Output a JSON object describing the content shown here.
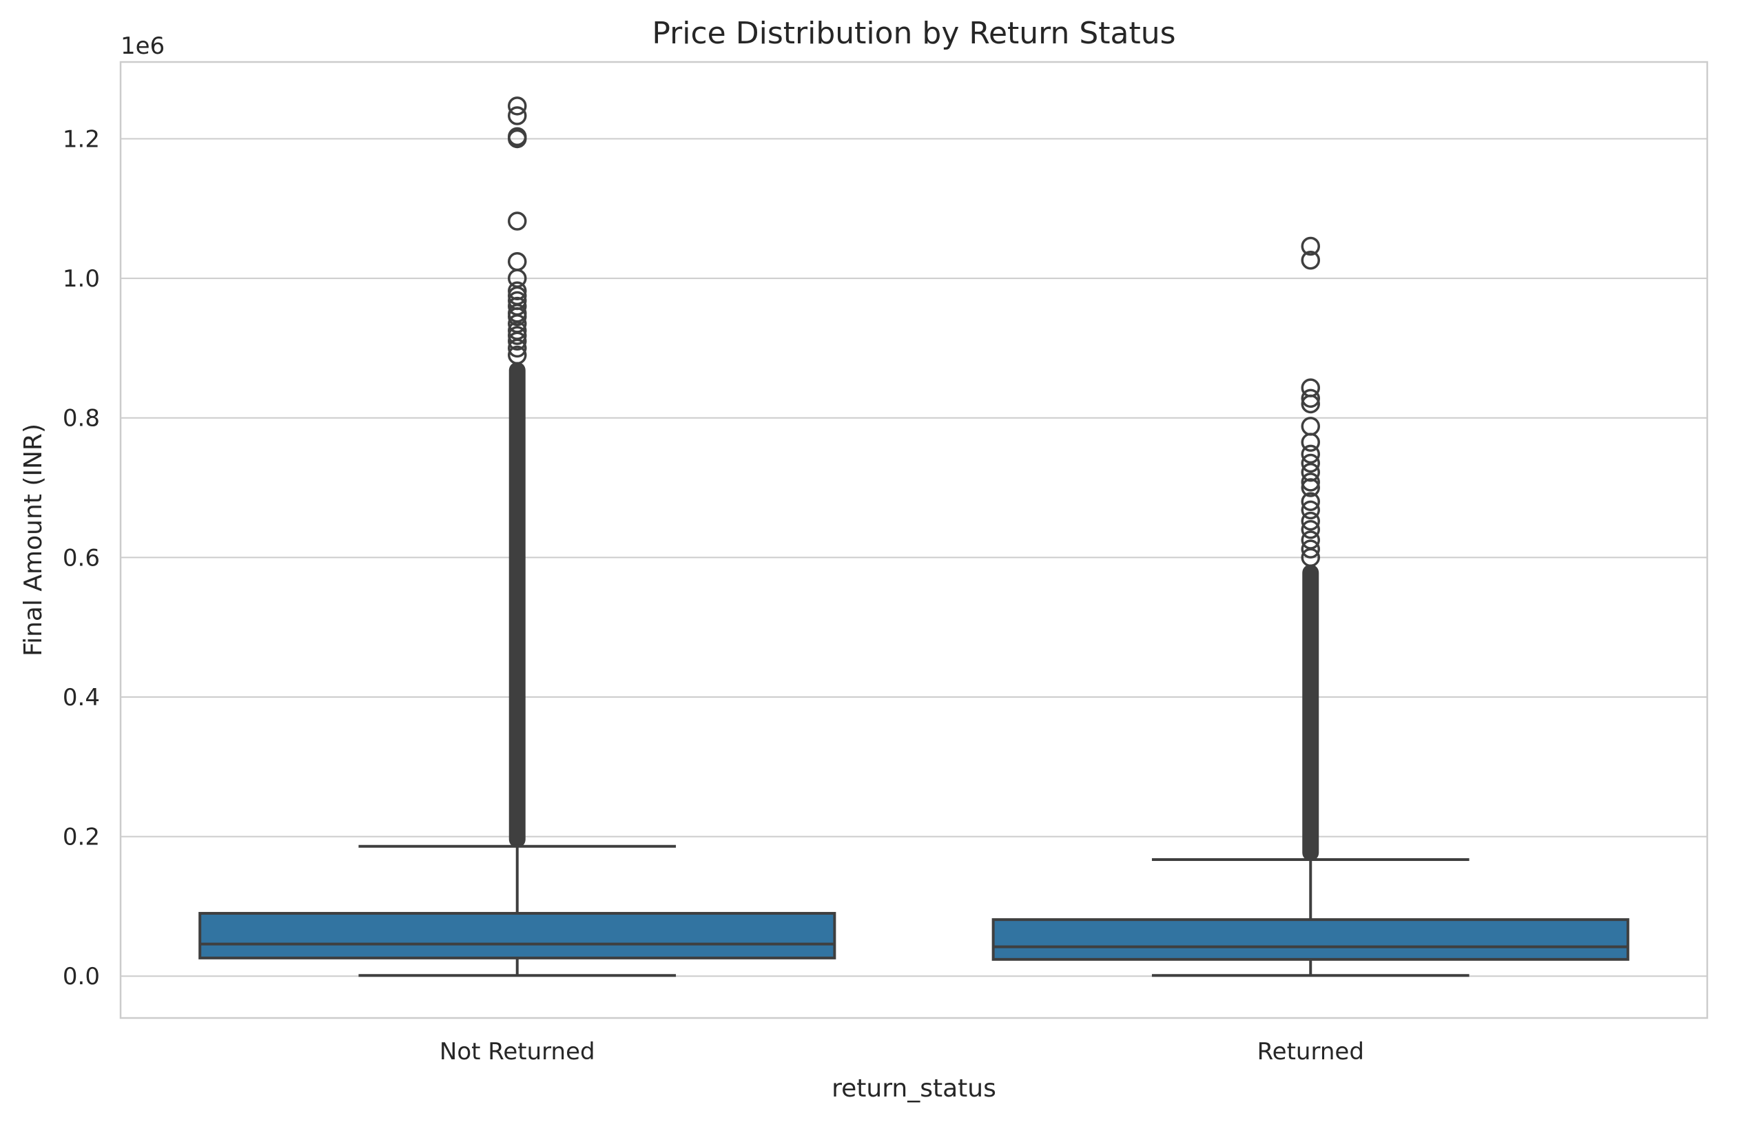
{
  "chart_data": {
    "type": "box",
    "title": "Price Distribution by Return Status",
    "xlabel": "return_status",
    "ylabel": "Final Amount (INR)",
    "y_offset_label": "1e6",
    "ylim": [
      -60000,
      1310000
    ],
    "yticks": [
      0,
      200000,
      400000,
      600000,
      800000,
      1000000,
      1200000
    ],
    "ytick_labels": [
      "0.0",
      "0.2",
      "0.4",
      "0.6",
      "0.8",
      "1.0",
      "1.2"
    ],
    "grid": true,
    "box_color": "#3274a1",
    "line_color": "#3f3f3f",
    "categories": [
      "Not Returned",
      "Returned"
    ],
    "boxes": [
      {
        "category": "Not Returned",
        "whisker_low": 1000,
        "q1": 26000,
        "median": 46000,
        "q3": 90000,
        "whisker_high": 186000,
        "outlier_band": [
          184000,
          880000
        ],
        "outliers": [
          890000,
          900000,
          910000,
          918000,
          925000,
          935000,
          945000,
          950000,
          960000,
          968000,
          975000,
          982000,
          1000000,
          1024000,
          1082000,
          1200000,
          1203000,
          1233000,
          1247000
        ]
      },
      {
        "category": "Returned",
        "whisker_low": 1000,
        "q1": 24000,
        "median": 42000,
        "q3": 81000,
        "whisker_high": 167000,
        "outlier_band": [
          165000,
          590000
        ],
        "outliers": [
          600000,
          612000,
          625000,
          640000,
          652000,
          668000,
          680000,
          700000,
          708000,
          722000,
          735000,
          748000,
          765000,
          788000,
          820000,
          828000,
          843000,
          1026000,
          1046000
        ]
      }
    ]
  }
}
